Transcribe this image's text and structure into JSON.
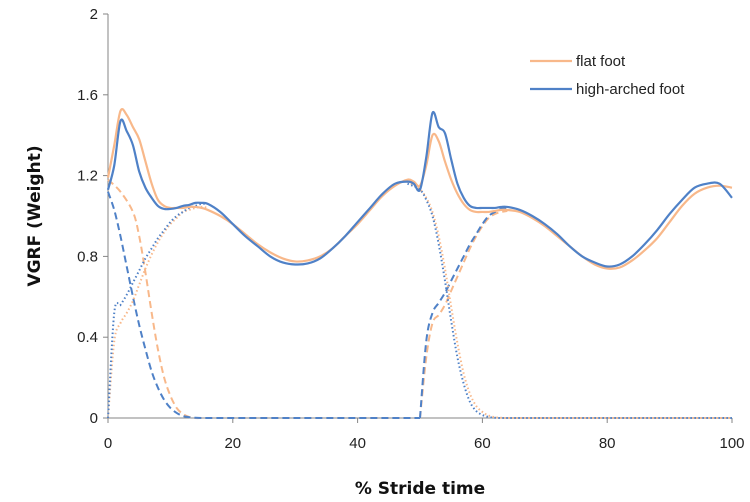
{
  "chart_data": {
    "type": "line",
    "xlabel": "% Stride time",
    "ylabel": "VGRF (Weight)",
    "xlim": [
      0,
      100
    ],
    "ylim": [
      0,
      2
    ],
    "x_ticks": [
      "0",
      "20",
      "40",
      "60",
      "80",
      "100"
    ],
    "y_ticks": [
      "0",
      "0.4",
      "0.8",
      "1.2",
      "1.6",
      "2"
    ],
    "grid": false,
    "legend_position": "top-right",
    "colors": {
      "flat": "#F8B88A",
      "high": "#4F81C7"
    },
    "series": [
      {
        "name": "flat foot",
        "line_style": "solid",
        "color_key": "flat",
        "in_legend": true,
        "x": [
          0,
          1,
          2,
          3,
          4,
          5,
          6,
          7,
          8,
          9,
          10,
          11,
          12,
          13,
          14,
          15,
          16,
          18,
          20,
          22,
          24,
          26,
          28,
          30,
          32,
          34,
          36,
          38,
          40,
          42,
          44,
          46,
          48,
          49,
          50,
          51,
          52,
          53,
          54,
          55,
          56,
          57,
          58,
          59,
          60,
          61,
          62,
          63,
          64,
          66,
          68,
          70,
          72,
          74,
          76,
          78,
          80,
          82,
          84,
          86,
          88,
          90,
          92,
          94,
          96,
          98,
          100
        ],
        "y": [
          1.19,
          1.35,
          1.52,
          1.5,
          1.44,
          1.38,
          1.27,
          1.16,
          1.08,
          1.05,
          1.04,
          1.04,
          1.04,
          1.045,
          1.045,
          1.04,
          1.03,
          1.0,
          0.96,
          0.91,
          0.86,
          0.82,
          0.79,
          0.775,
          0.78,
          0.8,
          0.84,
          0.9,
          0.96,
          1.03,
          1.1,
          1.15,
          1.18,
          1.17,
          1.15,
          1.25,
          1.4,
          1.37,
          1.27,
          1.18,
          1.11,
          1.06,
          1.03,
          1.02,
          1.02,
          1.02,
          1.025,
          1.03,
          1.03,
          1.02,
          0.99,
          0.95,
          0.9,
          0.85,
          0.8,
          0.76,
          0.74,
          0.745,
          0.78,
          0.83,
          0.89,
          0.97,
          1.05,
          1.11,
          1.14,
          1.15,
          1.14
        ]
      },
      {
        "name": "high-arched foot",
        "line_style": "solid",
        "color_key": "high",
        "in_legend": true,
        "x": [
          0,
          1,
          2,
          3,
          4,
          5,
          6,
          7,
          8,
          9,
          10,
          11,
          12,
          13,
          14,
          15,
          16,
          18,
          20,
          22,
          24,
          26,
          28,
          30,
          32,
          34,
          36,
          38,
          40,
          42,
          44,
          46,
          48,
          49,
          50,
          51,
          52,
          53,
          54,
          55,
          56,
          57,
          58,
          59,
          60,
          61,
          62,
          63,
          64,
          66,
          68,
          70,
          72,
          74,
          76,
          78,
          80,
          82,
          84,
          86,
          88,
          90,
          92,
          94,
          96,
          98,
          100
        ],
        "y": [
          1.13,
          1.25,
          1.47,
          1.42,
          1.35,
          1.22,
          1.14,
          1.09,
          1.05,
          1.035,
          1.035,
          1.04,
          1.05,
          1.055,
          1.065,
          1.065,
          1.06,
          1.02,
          0.96,
          0.9,
          0.85,
          0.8,
          0.77,
          0.76,
          0.765,
          0.79,
          0.84,
          0.9,
          0.97,
          1.04,
          1.11,
          1.16,
          1.17,
          1.16,
          1.13,
          1.29,
          1.51,
          1.44,
          1.41,
          1.28,
          1.16,
          1.09,
          1.05,
          1.04,
          1.04,
          1.04,
          1.04,
          1.045,
          1.045,
          1.03,
          1.0,
          0.96,
          0.91,
          0.85,
          0.8,
          0.77,
          0.75,
          0.76,
          0.8,
          0.86,
          0.93,
          1.01,
          1.08,
          1.14,
          1.16,
          1.16,
          1.09
        ]
      },
      {
        "name": "",
        "line_style": "dashed",
        "color_key": "flat",
        "in_legend": false,
        "x": [
          0,
          2,
          4,
          5,
          6,
          7,
          8,
          9,
          10,
          11,
          12,
          13,
          14,
          15,
          16,
          18,
          20,
          30,
          40,
          50
        ],
        "y": [
          1.18,
          1.12,
          1.02,
          0.9,
          0.72,
          0.52,
          0.34,
          0.2,
          0.11,
          0.05,
          0.02,
          0.005,
          0,
          0,
          0,
          0,
          0,
          0,
          0,
          0
        ]
      },
      {
        "name": "",
        "line_style": "dashed",
        "color_key": "high",
        "in_legend": false,
        "x": [
          0,
          1,
          2,
          3,
          4,
          5,
          6,
          7,
          8,
          9,
          10,
          11,
          12,
          13,
          14,
          15,
          16,
          18,
          20,
          30,
          40,
          50
        ],
        "y": [
          1.12,
          1.03,
          0.9,
          0.75,
          0.6,
          0.46,
          0.34,
          0.23,
          0.15,
          0.09,
          0.05,
          0.025,
          0.01,
          0.004,
          0.001,
          0,
          0,
          0,
          0,
          0,
          0,
          0
        ]
      },
      {
        "name": "",
        "line_style": "dotted",
        "color_key": "flat",
        "in_legend": false,
        "x": [
          0,
          1,
          2,
          3,
          4,
          5,
          6,
          7,
          8,
          9,
          10,
          11,
          12,
          13,
          14,
          15,
          16
        ],
        "y": [
          0,
          0.38,
          0.47,
          0.52,
          0.58,
          0.66,
          0.74,
          0.81,
          0.87,
          0.92,
          0.96,
          0.99,
          1.02,
          1.03,
          1.04,
          1.045,
          1.04
        ]
      },
      {
        "name": "",
        "line_style": "dotted",
        "color_key": "high",
        "in_legend": false,
        "x": [
          0,
          1,
          2,
          3,
          4,
          5,
          6,
          7,
          8,
          9,
          10,
          11,
          12,
          13,
          14,
          15,
          16
        ],
        "y": [
          0,
          0.52,
          0.56,
          0.61,
          0.67,
          0.73,
          0.79,
          0.84,
          0.89,
          0.93,
          0.97,
          1.0,
          1.02,
          1.04,
          1.05,
          1.06,
          1.06
        ]
      },
      {
        "name": "",
        "line_style": "dashed",
        "color_key": "flat",
        "in_legend": false,
        "x": [
          50,
          51,
          52,
          53,
          54,
          55,
          56,
          57,
          58,
          59,
          60,
          61,
          62,
          63,
          64
        ],
        "y": [
          0,
          0.3,
          0.47,
          0.51,
          0.56,
          0.63,
          0.7,
          0.77,
          0.84,
          0.9,
          0.95,
          0.99,
          1.01,
          1.02,
          1.025
        ]
      },
      {
        "name": "",
        "line_style": "dashed",
        "color_key": "high",
        "in_legend": false,
        "x": [
          50,
          51,
          52,
          53,
          54,
          55,
          56,
          57,
          58,
          59,
          60,
          61,
          62,
          63,
          64
        ],
        "y": [
          0,
          0.38,
          0.52,
          0.57,
          0.62,
          0.68,
          0.74,
          0.8,
          0.86,
          0.91,
          0.96,
          1.0,
          1.02,
          1.035,
          1.04
        ]
      },
      {
        "name": "",
        "line_style": "dotted",
        "color_key": "flat",
        "in_legend": false,
        "x": [
          48,
          50,
          51,
          52,
          53,
          54,
          55,
          56,
          57,
          58,
          59,
          60,
          61,
          62,
          63,
          64,
          66,
          70,
          80,
          90,
          100
        ],
        "y": [
          1.17,
          1.13,
          1.09,
          1.02,
          0.9,
          0.74,
          0.55,
          0.37,
          0.22,
          0.12,
          0.06,
          0.03,
          0.012,
          0.004,
          0.001,
          0,
          0,
          0,
          0,
          0,
          0
        ]
      },
      {
        "name": "",
        "line_style": "dotted",
        "color_key": "high",
        "in_legend": false,
        "x": [
          48,
          50,
          51,
          52,
          53,
          54,
          55,
          56,
          57,
          58,
          59,
          60,
          61,
          62,
          63,
          64,
          66,
          70,
          80,
          90,
          100
        ],
        "y": [
          1.16,
          1.13,
          1.08,
          1.0,
          0.86,
          0.68,
          0.48,
          0.3,
          0.17,
          0.08,
          0.035,
          0.015,
          0.005,
          0.001,
          0,
          0,
          0,
          0,
          0,
          0,
          0
        ]
      }
    ]
  }
}
